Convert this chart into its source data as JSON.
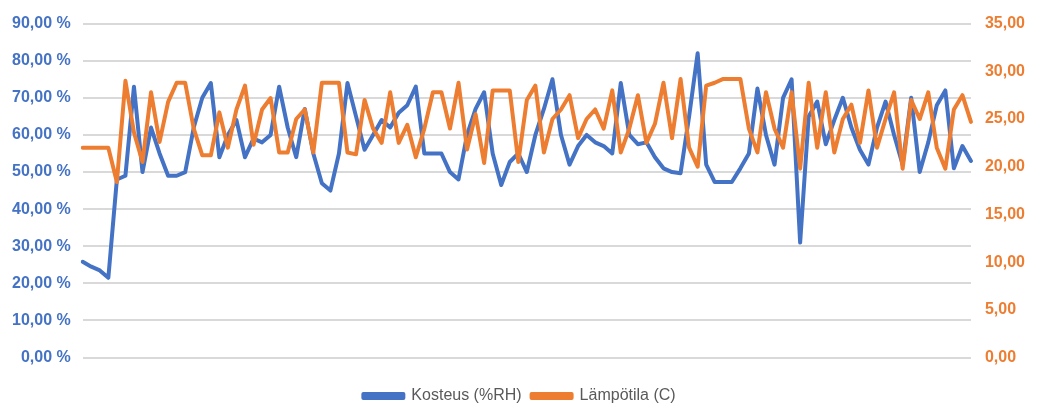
{
  "chart_data": {
    "type": "line",
    "categories": [
      null,
      null,
      null,
      null,
      null,
      null,
      null,
      null,
      null,
      null,
      null,
      null,
      null,
      null,
      null,
      null,
      null,
      null,
      null,
      null,
      null,
      null,
      null,
      null,
      null,
      null,
      null,
      null,
      null,
      null,
      null,
      null,
      null,
      null,
      null,
      null,
      null,
      null,
      null,
      null,
      null,
      null,
      null,
      null,
      null,
      null,
      null,
      null,
      null,
      null,
      null,
      null,
      null,
      null,
      null,
      null,
      null,
      null,
      null,
      null,
      null,
      null,
      null,
      null,
      null,
      null,
      null,
      null,
      null,
      null,
      null,
      null,
      null,
      null,
      null,
      null,
      null,
      null,
      null,
      null,
      null,
      null,
      null,
      null,
      null,
      null,
      null,
      null,
      null,
      null,
      null,
      null,
      null,
      null,
      null,
      null,
      null,
      null,
      null,
      null,
      null,
      null,
      null,
      null,
      null
    ],
    "series": [
      {
        "name": "Kosteus (%RH)",
        "color": "#4472c4",
        "values": [
          25.8,
          24.5,
          23.5,
          21.5,
          48,
          49,
          73,
          50,
          62,
          55,
          49,
          49,
          50,
          62,
          70,
          74,
          54,
          60,
          64,
          54,
          59,
          58,
          60,
          73,
          62,
          54,
          67,
          55,
          47,
          45,
          55,
          74,
          65,
          56,
          60,
          64,
          62,
          66,
          68,
          73,
          55,
          55,
          55,
          50,
          48,
          60,
          67,
          71.5,
          55,
          46.5,
          52.7,
          55,
          50,
          60,
          67,
          75,
          60,
          52,
          57,
          60,
          58,
          57,
          55,
          74,
          60,
          57.5,
          58,
          54,
          51,
          50,
          49.7,
          65,
          82,
          52,
          47.3,
          47.3,
          47.3,
          51,
          55,
          72.5,
          60,
          52,
          70,
          75,
          31,
          65,
          69,
          57.5,
          64,
          70,
          62,
          56,
          52,
          62,
          69,
          60,
          52,
          70,
          50,
          58,
          68,
          72,
          51,
          57,
          53
        ]
      },
      {
        "name": "Lämpötila (C)",
        "color": "#ed7d31",
        "axis": "y2",
        "values": [
          22,
          22,
          22,
          22,
          18.4,
          29,
          23.6,
          20.5,
          27.8,
          22.6,
          26.8,
          28.8,
          28.8,
          24,
          21.2,
          21.2,
          25.7,
          22,
          26,
          28.5,
          22.3,
          26,
          27.2,
          21.5,
          21.5,
          25,
          26,
          21.5,
          28.8,
          28.8,
          28.8,
          21.5,
          21.3,
          27,
          24,
          22.5,
          27.8,
          22.5,
          24.4,
          21,
          24,
          27.8,
          27.8,
          24,
          28.8,
          21.8,
          25.5,
          20.4,
          28,
          28,
          28,
          20.5,
          27,
          28.5,
          21.5,
          25,
          26,
          27.5,
          23,
          25,
          26,
          24,
          28,
          21.5,
          24,
          27.5,
          22.5,
          24.5,
          28.8,
          23,
          29.2,
          22,
          20,
          28.5,
          28.8,
          29.2,
          29.2,
          29.2,
          24,
          21.5,
          27.8,
          24,
          22,
          27.8,
          19.8,
          28.8,
          22,
          27.8,
          21.5,
          25,
          26.5,
          22.5,
          28,
          22,
          25,
          27.8,
          19.8,
          27,
          25,
          27.8,
          22,
          19.8,
          26,
          27.5,
          24.7
        ]
      }
    ],
    "ylim": [
      0,
      90
    ],
    "yticks": [
      {
        "value": 0,
        "label": "0,00 %"
      },
      {
        "value": 10,
        "label": "10,00 %"
      },
      {
        "value": 20,
        "label": "20,00 %"
      },
      {
        "value": 30,
        "label": "30,00 %"
      },
      {
        "value": 40,
        "label": "40,00 %"
      },
      {
        "value": 50,
        "label": "50,00 %"
      },
      {
        "value": 60,
        "label": "60,00 %"
      },
      {
        "value": 70,
        "label": "70,00 %"
      },
      {
        "value": 80,
        "label": "80,00 %"
      },
      {
        "value": 90,
        "label": "90,00 %"
      }
    ],
    "y2lim": [
      0,
      35
    ],
    "y2ticks": [
      {
        "value": 0,
        "label": "0,00"
      },
      {
        "value": 5,
        "label": "5,00"
      },
      {
        "value": 10,
        "label": "10,00"
      },
      {
        "value": 15,
        "label": "15,00"
      },
      {
        "value": 20,
        "label": "20,00"
      },
      {
        "value": 25,
        "label": "25,00"
      },
      {
        "value": 30,
        "label": "30,00"
      },
      {
        "value": 35,
        "label": "35,00"
      }
    ],
    "grid": "y",
    "legend": "bottom",
    "marker": "none",
    "line_style": "solid"
  }
}
